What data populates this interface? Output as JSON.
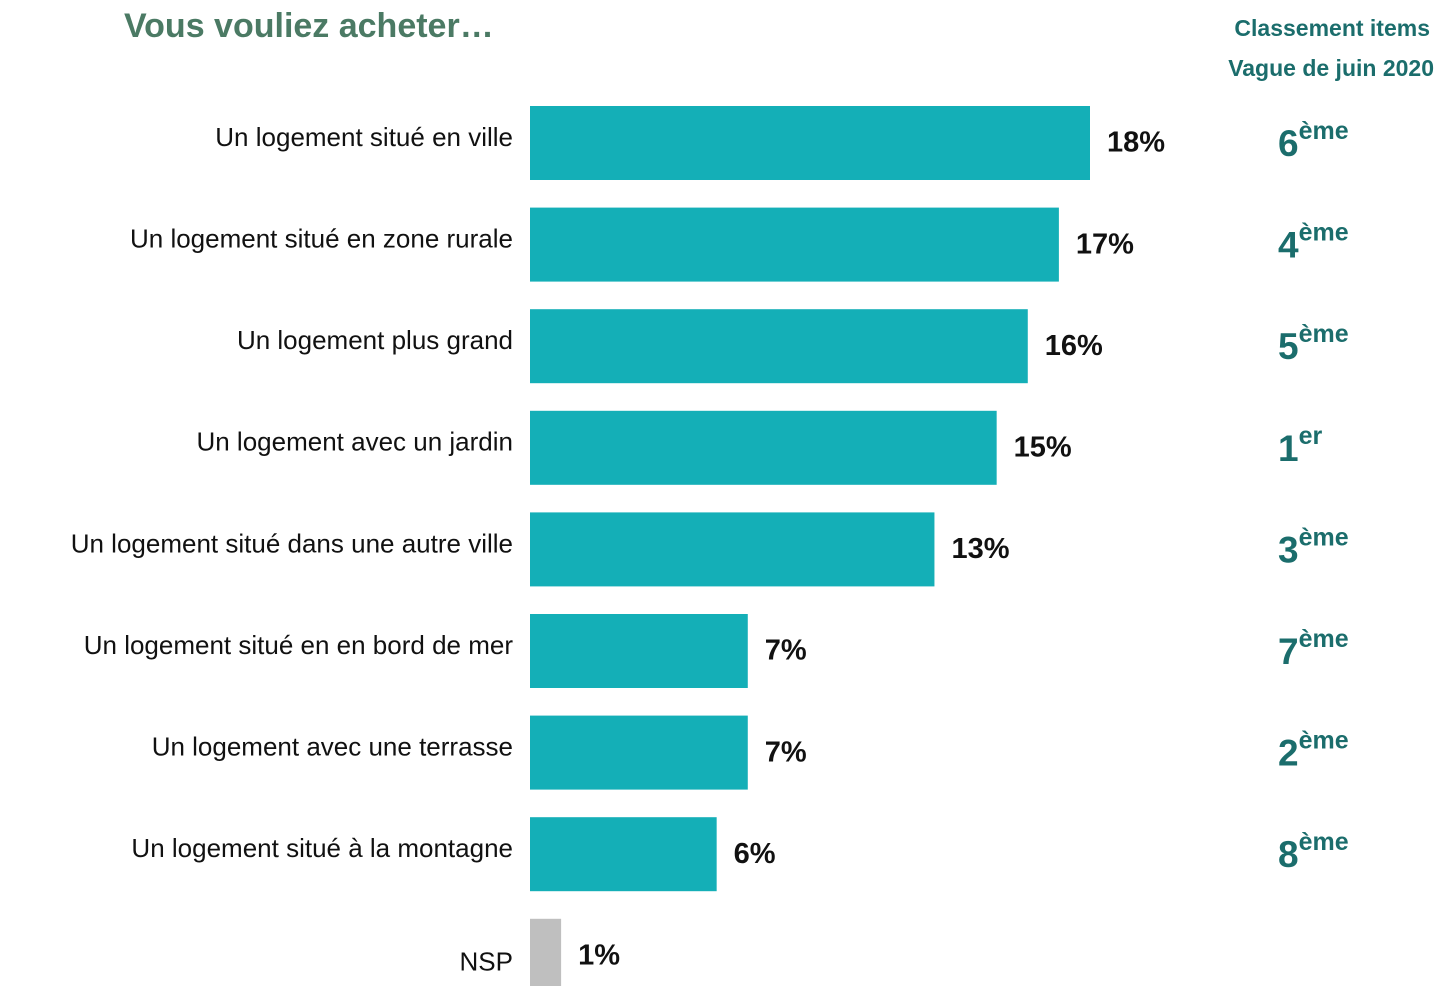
{
  "chart_data": {
    "type": "bar",
    "orientation": "horizontal",
    "title": "Vous vouliez acheter…",
    "rank_header": [
      "Classement items",
      "Vague de juin 2020"
    ],
    "categories": [
      "Un logement situé en ville",
      "Un logement situé en zone rurale",
      "Un logement plus grand",
      "Un logement avec un jardin",
      "Un logement situé dans une autre ville",
      "Un logement situé en en bord de mer",
      "Un logement avec une terrasse",
      "Un logement situé à la montagne",
      "NSP"
    ],
    "values": [
      18,
      17,
      16,
      15,
      13,
      7,
      7,
      6,
      1
    ],
    "value_labels": [
      "18%",
      "17%",
      "16%",
      "15%",
      "13%",
      "7%",
      "7%",
      "6%",
      "1%"
    ],
    "colors": [
      "#14afb7",
      "#14afb7",
      "#14afb7",
      "#14afb7",
      "#14afb7",
      "#14afb7",
      "#14afb7",
      "#14afb7",
      "#bfbfbf"
    ],
    "ranks": [
      {
        "number": "6",
        "suffix": "ème"
      },
      {
        "number": "4",
        "suffix": "ème"
      },
      {
        "number": "5",
        "suffix": "ème"
      },
      {
        "number": "1",
        "suffix": "er"
      },
      {
        "number": "3",
        "suffix": "ème"
      },
      {
        "number": "7",
        "suffix": "ème"
      },
      {
        "number": "2",
        "suffix": "ème"
      },
      {
        "number": "8",
        "suffix": "ème"
      },
      null
    ]
  }
}
